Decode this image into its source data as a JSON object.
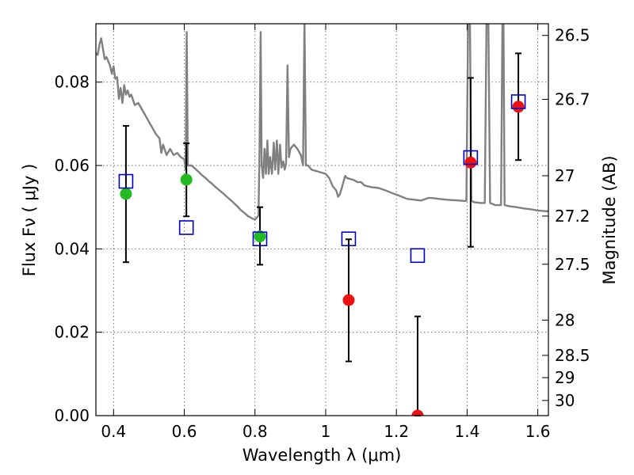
{
  "chart_data": {
    "type": "scatter",
    "title": "",
    "xlabel": "Wavelength  λ (μm)",
    "ylabel": "Flux  Fν  ( μJy )",
    "y2label": "Magnitude (AB)",
    "xlim": [
      0.35,
      1.63
    ],
    "ylim": [
      0,
      0.094
    ],
    "grid": true,
    "legend": "none",
    "x_ticks": [
      {
        "v": 0.4,
        "label": "0.4"
      },
      {
        "v": 0.6,
        "label": "0.6"
      },
      {
        "v": 0.8,
        "label": "0.8"
      },
      {
        "v": 1.0,
        "label": "1"
      },
      {
        "v": 1.2,
        "label": "1.2"
      },
      {
        "v": 1.4,
        "label": "1.4"
      },
      {
        "v": 1.6,
        "label": "1.6"
      }
    ],
    "y_ticks": [
      {
        "v": 0.0,
        "label": "0.00"
      },
      {
        "v": 0.02,
        "label": "0.02"
      },
      {
        "v": 0.04,
        "label": "0.04"
      },
      {
        "v": 0.06,
        "label": "0.06"
      },
      {
        "v": 0.08,
        "label": "0.08"
      }
    ],
    "y2_ticks": [
      {
        "v": 26.5,
        "label": "26.5"
      },
      {
        "v": 26.7,
        "label": "26.7"
      },
      {
        "v": 27.0,
        "label": "27"
      },
      {
        "v": 27.2,
        "label": "27.2"
      },
      {
        "v": 27.5,
        "label": "27.5"
      },
      {
        "v": 28.0,
        "label": "28"
      },
      {
        "v": 28.5,
        "label": "28.5"
      },
      {
        "v": 29.0,
        "label": "29"
      },
      {
        "v": 30.0,
        "label": "30"
      }
    ],
    "colors": {
      "model": "#808080",
      "optical": "#22bb22",
      "nir": "#ee1111",
      "model_phot": "#0000cc",
      "error": "#000000",
      "grid": "#555555"
    },
    "series": [
      {
        "kind": "measured",
        "color_key": "optical",
        "points": [
          {
            "x": 0.435,
            "y": 0.0532,
            "ylo": 0.0368,
            "yhi": 0.0695
          },
          {
            "x": 0.606,
            "y": 0.0566,
            "ylo": 0.0478,
            "yhi": 0.0653
          },
          {
            "x": 0.814,
            "y": 0.043,
            "ylo": 0.0362,
            "yhi": 0.05
          }
        ]
      },
      {
        "kind": "measured",
        "color_key": "nir",
        "points": [
          {
            "x": 1.065,
            "y": 0.0277,
            "ylo": 0.013,
            "yhi": 0.0423
          },
          {
            "x": 1.26,
            "y": 0.0,
            "ylo": 0.0,
            "yhi": 0.0238
          },
          {
            "x": 1.41,
            "y": 0.0607,
            "ylo": 0.0405,
            "yhi": 0.081
          },
          {
            "x": 1.545,
            "y": 0.0741,
            "ylo": 0.0613,
            "yhi": 0.0869
          }
        ]
      },
      {
        "kind": "model_photometry",
        "color_key": "model_phot",
        "points": [
          {
            "x": 0.435,
            "y": 0.0562
          },
          {
            "x": 0.606,
            "y": 0.0451
          },
          {
            "x": 0.814,
            "y": 0.0424
          },
          {
            "x": 1.065,
            "y": 0.0424
          },
          {
            "x": 1.26,
            "y": 0.0384
          },
          {
            "x": 1.41,
            "y": 0.0619
          },
          {
            "x": 1.545,
            "y": 0.0753
          }
        ]
      },
      {
        "kind": "model_spectrum",
        "color_key": "model",
        "points": [
          [
            0.35,
            0.087
          ],
          [
            0.355,
            0.0865
          ],
          [
            0.36,
            0.089
          ],
          [
            0.365,
            0.0905
          ],
          [
            0.37,
            0.088
          ],
          [
            0.375,
            0.0855
          ],
          [
            0.38,
            0.086
          ],
          [
            0.39,
            0.084
          ],
          [
            0.395,
            0.082
          ],
          [
            0.4,
            0.0838
          ],
          [
            0.405,
            0.0808
          ],
          [
            0.41,
            0.0812
          ],
          [
            0.415,
            0.076
          ],
          [
            0.42,
            0.0786
          ],
          [
            0.425,
            0.075
          ],
          [
            0.43,
            0.0793
          ],
          [
            0.435,
            0.077
          ],
          [
            0.44,
            0.078
          ],
          [
            0.445,
            0.0765
          ],
          [
            0.45,
            0.077
          ],
          [
            0.46,
            0.0745
          ],
          [
            0.47,
            0.075
          ],
          [
            0.48,
            0.0735
          ],
          [
            0.49,
            0.072
          ],
          [
            0.5,
            0.0705
          ],
          [
            0.51,
            0.069
          ],
          [
            0.52,
            0.0675
          ],
          [
            0.53,
            0.0665
          ],
          [
            0.535,
            0.063
          ],
          [
            0.54,
            0.065
          ],
          [
            0.55,
            0.0625
          ],
          [
            0.56,
            0.064
          ],
          [
            0.57,
            0.0625
          ],
          [
            0.58,
            0.063
          ],
          [
            0.59,
            0.062
          ],
          [
            0.6,
            0.0615
          ],
          [
            0.604,
            0.059
          ],
          [
            0.607,
            0.092
          ],
          [
            0.61,
            0.06
          ],
          [
            0.62,
            0.06
          ],
          [
            0.63,
            0.0593
          ],
          [
            0.64,
            0.0585
          ],
          [
            0.65,
            0.0577
          ],
          [
            0.66,
            0.057
          ],
          [
            0.67,
            0.0562
          ],
          [
            0.68,
            0.0555
          ],
          [
            0.69,
            0.0547
          ],
          [
            0.7,
            0.054
          ],
          [
            0.71,
            0.0533
          ],
          [
            0.72,
            0.0525
          ],
          [
            0.73,
            0.0518
          ],
          [
            0.74,
            0.051
          ],
          [
            0.75,
            0.0502
          ],
          [
            0.76,
            0.0493
          ],
          [
            0.77,
            0.0486
          ],
          [
            0.78,
            0.0479
          ],
          [
            0.79,
            0.0474
          ],
          [
            0.8,
            0.047
          ],
          [
            0.805,
            0.0475
          ],
          [
            0.81,
            0.048
          ],
          [
            0.813,
            0.064
          ],
          [
            0.816,
            0.092
          ],
          [
            0.819,
            0.06
          ],
          [
            0.823,
            0.057
          ],
          [
            0.827,
            0.064
          ],
          [
            0.831,
            0.058
          ],
          [
            0.835,
            0.066
          ],
          [
            0.839,
            0.058
          ],
          [
            0.843,
            0.062
          ],
          [
            0.848,
            0.058
          ],
          [
            0.853,
            0.0655
          ],
          [
            0.857,
            0.059
          ],
          [
            0.862,
            0.066
          ],
          [
            0.866,
            0.058
          ],
          [
            0.871,
            0.065
          ],
          [
            0.875,
            0.0595
          ],
          [
            0.88,
            0.061
          ],
          [
            0.884,
            0.059
          ],
          [
            0.888,
            0.0605
          ],
          [
            0.892,
            0.084
          ],
          [
            0.896,
            0.062
          ],
          [
            0.9,
            0.064
          ],
          [
            0.91,
            0.065
          ],
          [
            0.92,
            0.064
          ],
          [
            0.93,
            0.0625
          ],
          [
            0.936,
            0.06
          ],
          [
            0.94,
            0.095
          ],
          [
            0.944,
            0.06
          ],
          [
            0.95,
            0.06
          ],
          [
            0.96,
            0.059
          ],
          [
            0.98,
            0.0585
          ],
          [
            1.0,
            0.058
          ],
          [
            1.01,
            0.057
          ],
          [
            1.02,
            0.055
          ],
          [
            1.03,
            0.054
          ],
          [
            1.035,
            0.0525
          ],
          [
            1.04,
            0.053
          ],
          [
            1.05,
            0.056
          ],
          [
            1.055,
            0.0575
          ],
          [
            1.06,
            0.057
          ],
          [
            1.08,
            0.0565
          ],
          [
            1.09,
            0.056
          ],
          [
            1.1,
            0.056
          ],
          [
            1.11,
            0.0552
          ],
          [
            1.12,
            0.055
          ],
          [
            1.13,
            0.0548
          ],
          [
            1.15,
            0.0546
          ],
          [
            1.17,
            0.054
          ],
          [
            1.19,
            0.0533
          ],
          [
            1.21,
            0.0527
          ],
          [
            1.23,
            0.052
          ],
          [
            1.25,
            0.0518
          ],
          [
            1.27,
            0.0516
          ],
          [
            1.29,
            0.0522
          ],
          [
            1.3,
            0.0522
          ],
          [
            1.32,
            0.052
          ],
          [
            1.34,
            0.0518
          ],
          [
            1.36,
            0.0517
          ],
          [
            1.38,
            0.0516
          ],
          [
            1.39,
            0.0515
          ],
          [
            1.398,
            0.0515
          ],
          [
            1.403,
            0.095
          ],
          [
            1.408,
            0.095
          ],
          [
            1.412,
            0.0515
          ],
          [
            1.42,
            0.0512
          ],
          [
            1.44,
            0.051
          ],
          [
            1.45,
            0.051
          ],
          [
            1.455,
            0.095
          ],
          [
            1.46,
            0.095
          ],
          [
            1.465,
            0.051
          ],
          [
            1.48,
            0.0505
          ],
          [
            1.496,
            0.0505
          ],
          [
            1.5,
            0.095
          ],
          [
            1.503,
            0.095
          ],
          [
            1.506,
            0.0505
          ],
          [
            1.52,
            0.0502
          ],
          [
            1.54,
            0.05
          ],
          [
            1.56,
            0.0497
          ],
          [
            1.58,
            0.0495
          ],
          [
            1.6,
            0.0492
          ],
          [
            1.63,
            0.049
          ]
        ]
      }
    ]
  }
}
